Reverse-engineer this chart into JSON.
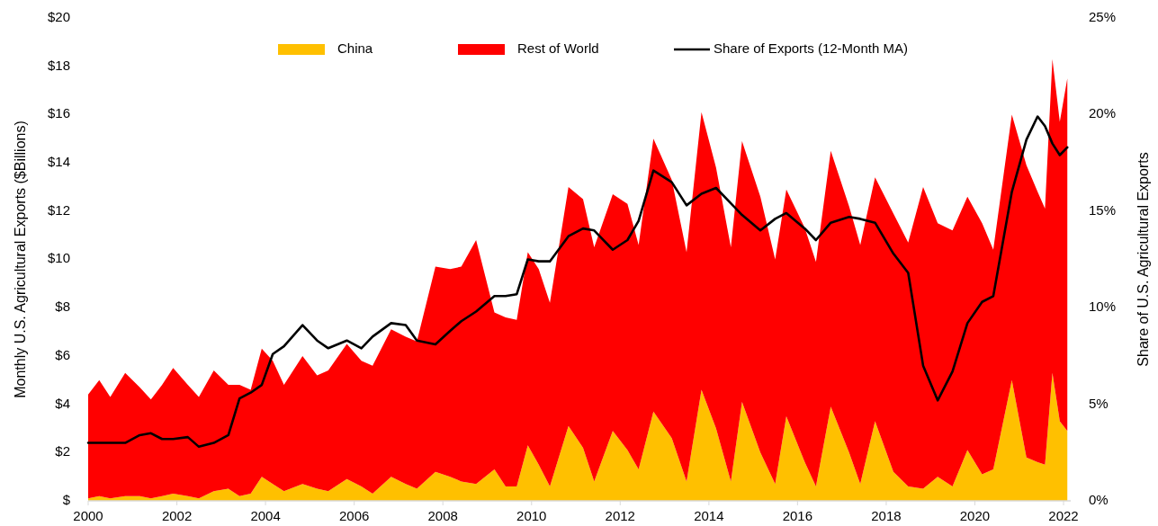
{
  "chart_data": {
    "type": "area",
    "stacked": true,
    "xlabel": null,
    "ylabel": "Monthly U.S. Agricultural Exports ($Billions)",
    "y2label": "Share of U.S. Agricultural Exports",
    "x": [
      "2000-01",
      "2000-04",
      "2000-07",
      "2000-11",
      "2001-03",
      "2001-06",
      "2001-09",
      "2001-12",
      "2002-04",
      "2002-07",
      "2002-11",
      "2003-03",
      "2003-06",
      "2003-09",
      "2003-12",
      "2004-03",
      "2004-06",
      "2004-11",
      "2005-03",
      "2005-06",
      "2005-11",
      "2006-03",
      "2006-06",
      "2006-11",
      "2007-03",
      "2007-06",
      "2007-11",
      "2008-03",
      "2008-06",
      "2008-10",
      "2009-03",
      "2009-06",
      "2009-09",
      "2009-12",
      "2010-03",
      "2010-06",
      "2010-11",
      "2011-03",
      "2011-06",
      "2011-11",
      "2012-03",
      "2012-06",
      "2012-10",
      "2013-03",
      "2013-07",
      "2013-11",
      "2014-03",
      "2014-07",
      "2014-10",
      "2015-03",
      "2015-07",
      "2015-10",
      "2016-03",
      "2016-06",
      "2016-10",
      "2017-03",
      "2017-06",
      "2017-10",
      "2018-03",
      "2018-07",
      "2018-11",
      "2019-03",
      "2019-07",
      "2019-11",
      "2020-03",
      "2020-06",
      "2020-11",
      "2021-03",
      "2021-06",
      "2021-08",
      "2021-10",
      "2021-12",
      "2022-02"
    ],
    "series": [
      {
        "name": "China",
        "color": "#ffc000",
        "values": [
          0.1,
          0.2,
          0.1,
          0.2,
          0.2,
          0.1,
          0.2,
          0.3,
          0.2,
          0.1,
          0.4,
          0.5,
          0.2,
          0.3,
          1.0,
          0.7,
          0.4,
          0.7,
          0.5,
          0.4,
          0.9,
          0.6,
          0.3,
          1.0,
          0.7,
          0.5,
          1.2,
          1.0,
          0.8,
          0.7,
          1.3,
          0.6,
          0.6,
          2.3,
          1.5,
          0.6,
          3.1,
          2.2,
          0.8,
          2.9,
          2.1,
          1.3,
          3.7,
          2.6,
          0.8,
          4.6,
          3.0,
          0.8,
          4.1,
          2.0,
          0.7,
          3.5,
          1.6,
          0.6,
          3.9,
          2.0,
          0.7,
          3.3,
          1.2,
          0.6,
          0.5,
          1.0,
          0.6,
          2.1,
          1.1,
          1.3,
          5.0,
          1.8,
          1.6,
          1.5,
          5.3,
          3.3,
          2.9
        ]
      },
      {
        "name": "Rest of World",
        "color": "#ff0000",
        "values": [
          4.3,
          4.8,
          4.2,
          5.1,
          4.5,
          4.1,
          4.6,
          5.2,
          4.6,
          4.2,
          5.0,
          4.3,
          4.6,
          4.3,
          5.3,
          5.1,
          4.4,
          5.3,
          4.7,
          5.0,
          5.6,
          5.2,
          5.3,
          6.1,
          6.1,
          6.1,
          8.5,
          8.6,
          8.9,
          10.1,
          6.5,
          7.0,
          6.9,
          8.0,
          8.1,
          7.6,
          9.9,
          10.3,
          9.7,
          9.8,
          10.2,
          9.3,
          11.3,
          10.7,
          9.5,
          11.5,
          10.8,
          9.7,
          10.8,
          10.6,
          9.3,
          9.4,
          9.7,
          9.3,
          10.6,
          10.2,
          9.9,
          10.1,
          10.7,
          10.1,
          12.5,
          10.5,
          10.6,
          10.5,
          10.4,
          9.1,
          11.0,
          12.1,
          11.2,
          10.6,
          13.0,
          12.4,
          14.6
        ]
      },
      {
        "name": "Share of Exports (12-Month MA)",
        "type": "line",
        "axis": "y2",
        "color": "#000000",
        "values": [
          3.0,
          3.0,
          3.0,
          3.0,
          3.4,
          3.5,
          3.2,
          3.2,
          3.3,
          2.8,
          3.0,
          3.4,
          5.3,
          5.6,
          6.0,
          7.6,
          8.0,
          9.1,
          8.3,
          7.9,
          8.3,
          7.9,
          8.5,
          9.2,
          9.1,
          8.3,
          8.1,
          8.8,
          9.3,
          9.8,
          10.6,
          10.6,
          10.7,
          12.5,
          12.4,
          12.4,
          13.7,
          14.1,
          14.0,
          13.0,
          13.5,
          14.5,
          17.1,
          16.5,
          15.3,
          15.9,
          16.2,
          15.4,
          14.8,
          14.0,
          14.6,
          14.9,
          14.1,
          13.5,
          14.4,
          14.7,
          14.6,
          14.4,
          12.8,
          11.8,
          7.0,
          5.2,
          6.7,
          9.2,
          10.3,
          10.6,
          16.0,
          18.7,
          19.9,
          19.4,
          18.5,
          17.9,
          18.3
        ]
      }
    ],
    "xlim": [
      "2000-01",
      "2022-03"
    ],
    "xticks": [
      "2000",
      "2002",
      "2004",
      "2006",
      "2008",
      "2010",
      "2012",
      "2014",
      "2016",
      "2018",
      "2020",
      "2022"
    ],
    "ylim": [
      0,
      20
    ],
    "yticks": [
      {
        "value": 0,
        "label": "$"
      },
      {
        "value": 2,
        "label": "$2"
      },
      {
        "value": 4,
        "label": "$4"
      },
      {
        "value": 6,
        "label": "$6"
      },
      {
        "value": 8,
        "label": "$8"
      },
      {
        "value": 10,
        "label": "$10"
      },
      {
        "value": 12,
        "label": "$12"
      },
      {
        "value": 14,
        "label": "$14"
      },
      {
        "value": 16,
        "label": "$16"
      },
      {
        "value": 18,
        "label": "$18"
      },
      {
        "value": 20,
        "label": "$20"
      }
    ],
    "y2lim": [
      0,
      25
    ],
    "y2ticks": [
      {
        "value": 0,
        "label": "0%"
      },
      {
        "value": 5,
        "label": "5%"
      },
      {
        "value": 10,
        "label": "10%"
      },
      {
        "value": 15,
        "label": "15%"
      },
      {
        "value": 20,
        "label": "20%"
      },
      {
        "value": 25,
        "label": "25%"
      }
    ],
    "legend": "top",
    "grid": false,
    "line_style": "solid",
    "marker": "none"
  }
}
